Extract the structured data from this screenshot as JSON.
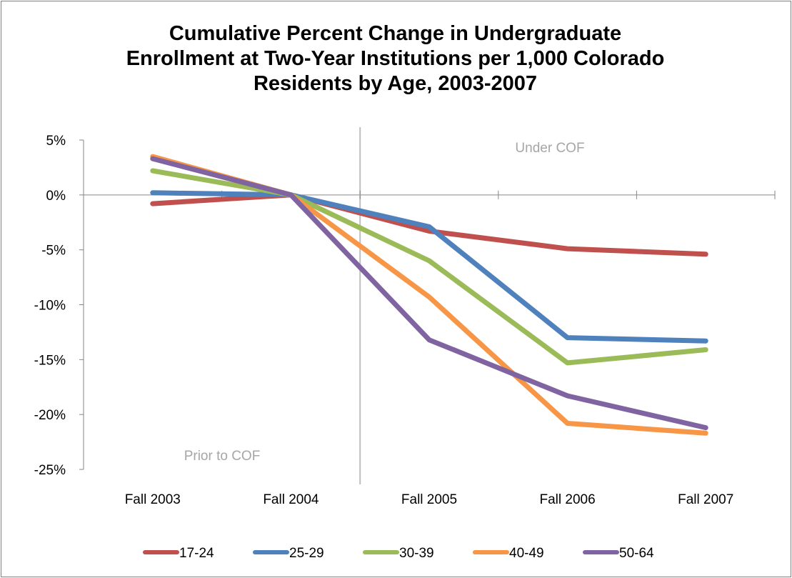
{
  "chart_data": {
    "type": "line",
    "title_lines": [
      "Cumulative Percent Change in Undergraduate",
      "Enrollment at Two-Year Institutions per 1,000 Colorado",
      "Residents by Age, 2003-2007"
    ],
    "xlabel": "",
    "ylabel": "",
    "categories": [
      "Fall 2003",
      "Fall 2004",
      "Fall 2005",
      "Fall 2006",
      "Fall 2007"
    ],
    "ylim": [
      -25,
      5
    ],
    "y_ticks": [
      5,
      0,
      -5,
      -10,
      -15,
      -20,
      -25
    ],
    "y_tick_labels": [
      "5%",
      "0%",
      "-5%",
      "-10%",
      "-15%",
      "-20%",
      "-25%"
    ],
    "grid": false,
    "legend_position": "bottom",
    "annotations": {
      "left_region": "Prior to COF",
      "right_region": "Under COF"
    },
    "series": [
      {
        "name": "17-24",
        "color": "#c0504d",
        "values": [
          -0.8,
          0,
          -3.3,
          -4.9,
          -5.4
        ]
      },
      {
        "name": "25-29",
        "color": "#4f81bd",
        "values": [
          0.2,
          0,
          -2.9,
          -13.0,
          -13.3
        ]
      },
      {
        "name": "30-39",
        "color": "#9bbb59",
        "values": [
          2.2,
          0,
          -6.0,
          -15.3,
          -14.1
        ]
      },
      {
        "name": "40-49",
        "color": "#f79646",
        "values": [
          3.5,
          0,
          -9.3,
          -20.8,
          -21.7
        ]
      },
      {
        "name": "50-64",
        "color": "#8064a2",
        "values": [
          3.3,
          0,
          -13.2,
          -18.3,
          -21.2
        ]
      }
    ]
  }
}
